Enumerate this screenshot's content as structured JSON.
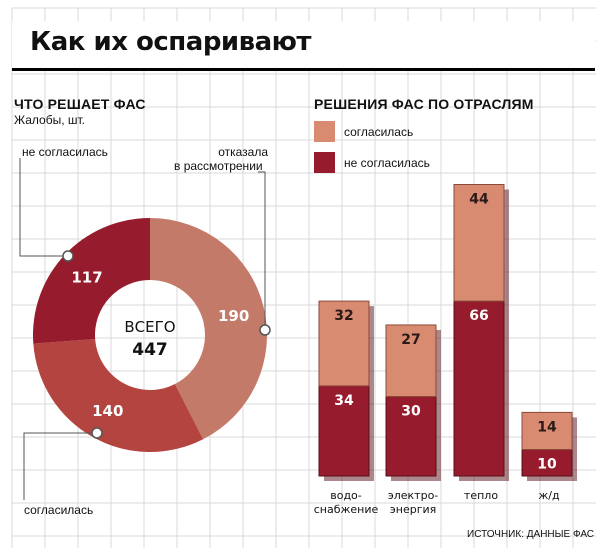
{
  "title": "Как их оспаривают",
  "donut_section": {
    "heading": "ЧТО РЕШАЕТ ФАС",
    "subheading": "Жалобы, шт.",
    "total_label": "ВСЕГО",
    "total_value": "447",
    "label_disagreed": "не согласилась",
    "label_refused_line1": "отказала",
    "label_refused_line2": "в рассмотрении",
    "label_agreed": "согласилась"
  },
  "bars_section": {
    "heading": "РЕШЕНИЯ ФАС ПО ОТРАСЛЯМ",
    "legend_agreed": "согласилась",
    "legend_disagreed": "не согласилась"
  },
  "source": "ИСТОЧНИК: ДАННЫЕ ФАС",
  "colors": {
    "light": "#d98b72",
    "dark": "#961b2c",
    "donut_refused": "#c47a68",
    "donut_agreed": "#b44440",
    "donut_disagreed": "#961b2c"
  },
  "chart_data": [
    {
      "type": "pie",
      "title": "ЧТО РЕШАЕТ ФАС",
      "subtitle": "Жалобы, шт.",
      "slices": [
        {
          "label": "отказала в рассмотрении",
          "value": 190
        },
        {
          "label": "согласилась",
          "value": 140
        },
        {
          "label": "не согласилась",
          "value": 117
        }
      ],
      "total": 447
    },
    {
      "type": "bar",
      "title": "РЕШЕНИЯ ФАС ПО ОТРАСЛЯМ",
      "stacked": true,
      "categories": [
        "водо-снабжение",
        "электро-энергия",
        "тепло",
        "ж/д"
      ],
      "category_lines": [
        [
          "водо-",
          "снабжение"
        ],
        [
          "электро-",
          "энергия"
        ],
        [
          "тепло"
        ],
        [
          "ж/д"
        ]
      ],
      "series": [
        {
          "name": "не согласилась",
          "values": [
            34,
            30,
            66,
            10
          ]
        },
        {
          "name": "согласилась",
          "values": [
            32,
            27,
            44,
            14
          ]
        }
      ]
    }
  ]
}
